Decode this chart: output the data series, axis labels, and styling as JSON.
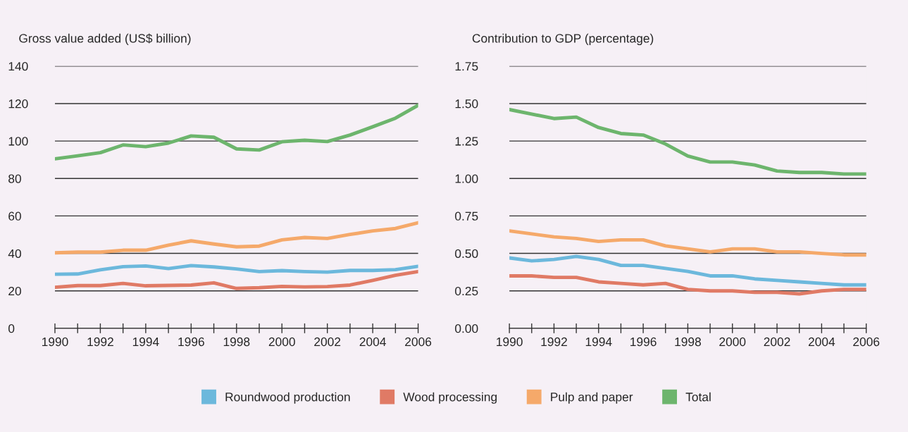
{
  "chart_data": [
    {
      "type": "line",
      "title": "Gross value added (US$ billion)",
      "x": [
        1990,
        1991,
        1992,
        1993,
        1994,
        1995,
        1996,
        1997,
        1998,
        1999,
        2000,
        2001,
        2002,
        2003,
        2004,
        2005,
        2006
      ],
      "series": [
        {
          "name": "Roundwood production",
          "color": "#6cb8dc",
          "values": [
            28.9,
            29.0,
            31.2,
            32.9,
            33.3,
            31.9,
            33.5,
            32.8,
            31.7,
            30.3,
            30.8,
            30.3,
            30.0,
            30.9,
            30.9,
            31.3,
            33.1
          ]
        },
        {
          "name": "Wood processing",
          "color": "#e07a65",
          "values": [
            21.9,
            22.8,
            22.8,
            24.0,
            22.7,
            22.9,
            23.1,
            24.3,
            21.3,
            21.7,
            22.4,
            22.1,
            22.3,
            23.1,
            25.6,
            28.3,
            30.3
          ]
        },
        {
          "name": "Pulp and paper",
          "color": "#f5a96a",
          "values": [
            40.3,
            40.7,
            40.7,
            41.7,
            41.7,
            44.4,
            46.7,
            45.0,
            43.5,
            43.9,
            47.2,
            48.5,
            48.0,
            50.1,
            52.0,
            53.3,
            56.4
          ]
        },
        {
          "name": "Total",
          "color": "#6db56d",
          "values": [
            90.5,
            92.1,
            93.8,
            97.9,
            97.0,
            98.9,
            102.7,
            102.0,
            95.8,
            95.2,
            99.6,
            100.4,
            99.7,
            103.2,
            107.6,
            112.2,
            119.1
          ]
        }
      ],
      "xlim": [
        1990,
        2006
      ],
      "xticks": [
        1990,
        {
          "value": 1991,
          "label": null
        },
        1992,
        {
          "value": 1993,
          "label": null
        },
        1994,
        {
          "value": 1995,
          "label": null
        },
        1996,
        {
          "value": 1997,
          "label": null
        },
        1998,
        {
          "value": 1999,
          "label": null
        },
        2000,
        {
          "value": 2001,
          "label": null
        },
        2002,
        {
          "value": 2003,
          "label": null
        },
        2004,
        {
          "value": 2005,
          "label": null
        },
        2006
      ],
      "ylim": [
        0,
        140
      ],
      "yticks": [
        0,
        20,
        40,
        60,
        80,
        100,
        120,
        140
      ],
      "grid": "y",
      "legend": "bottom",
      "marker": "none",
      "line_style": "solid"
    },
    {
      "type": "line",
      "title": "Contribution to GDP (percentage)",
      "x": [
        1990,
        1991,
        1992,
        1993,
        1994,
        1995,
        1996,
        1997,
        1998,
        1999,
        2000,
        2001,
        2002,
        2003,
        2004,
        2005,
        2006
      ],
      "series": [
        {
          "color": "#6cb8dc",
          "values": [
            0.47,
            0.45,
            0.46,
            0.48,
            0.46,
            0.42,
            0.42,
            0.4,
            0.38,
            0.35,
            0.35,
            0.33,
            0.32,
            0.31,
            0.3,
            0.29,
            0.29
          ]
        },
        {
          "color": "#e07a65",
          "values": [
            0.35,
            0.35,
            0.34,
            0.34,
            0.31,
            0.3,
            0.29,
            0.3,
            0.26,
            0.25,
            0.25,
            0.24,
            0.24,
            0.23,
            0.25,
            0.26,
            0.26
          ]
        },
        {
          "color": "#f5a96a",
          "values": [
            0.65,
            0.63,
            0.61,
            0.6,
            0.58,
            0.59,
            0.59,
            0.55,
            0.53,
            0.51,
            0.53,
            0.53,
            0.51,
            0.51,
            0.5,
            0.49,
            0.49
          ]
        },
        {
          "color": "#6db56d",
          "values": [
            1.46,
            1.43,
            1.4,
            1.41,
            1.34,
            1.3,
            1.29,
            1.23,
            1.15,
            1.11,
            1.11,
            1.09,
            1.05,
            1.04,
            1.04,
            1.03,
            1.03
          ]
        }
      ],
      "xlim": [
        1990,
        2006
      ],
      "xticks": [
        1990,
        {
          "value": 1991,
          "label": null
        },
        1992,
        {
          "value": 1993,
          "label": null
        },
        1994,
        {
          "value": 1995,
          "label": null
        },
        1996,
        {
          "value": 1997,
          "label": null
        },
        1998,
        {
          "value": 1999,
          "label": null
        },
        2000,
        {
          "value": 2001,
          "label": null
        },
        2002,
        {
          "value": 2003,
          "label": null
        },
        2004,
        {
          "value": 2005,
          "label": null
        },
        2006
      ],
      "ylim": [
        0,
        1.75
      ],
      "yticks": [
        {
          "value": 0,
          "label": "0.00"
        },
        {
          "value": 0.25,
          "label": "0.25"
        },
        {
          "value": 0.5,
          "label": "0.50"
        },
        {
          "value": 0.75,
          "label": "0.75"
        },
        {
          "value": 1.0,
          "label": "1.00"
        },
        {
          "value": 1.25,
          "label": "1.25"
        },
        {
          "value": 1.5,
          "label": "1.50"
        },
        {
          "value": 1.75,
          "label": "1.75"
        }
      ],
      "grid": "y",
      "marker": "none",
      "line_style": "solid"
    }
  ]
}
